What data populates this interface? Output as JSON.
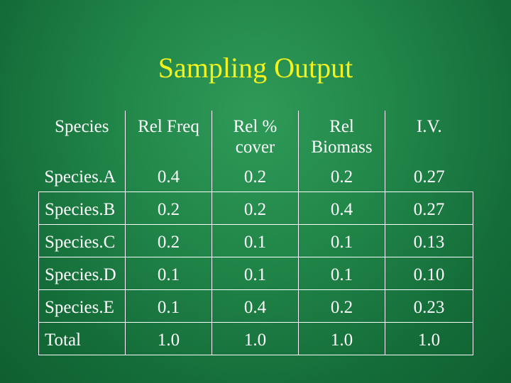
{
  "slide": {
    "title": "Sampling Output"
  },
  "table": {
    "headers": [
      "Species",
      "Rel Freq",
      "Rel % cover",
      "Rel Biomass",
      "I.V."
    ],
    "rows": [
      [
        "Species.A",
        "0.4",
        "0.2",
        "0.2",
        "0.27"
      ],
      [
        "Species.B",
        "0.2",
        "0.2",
        "0.4",
        "0.27"
      ],
      [
        "Species.C",
        "0.2",
        "0.1",
        "0.1",
        "0.13"
      ],
      [
        "Species.D",
        "0.1",
        "0.1",
        "0.1",
        "0.10"
      ],
      [
        "Species.E",
        "0.1",
        "0.4",
        "0.2",
        "0.23"
      ],
      [
        "Total",
        "1.0",
        "1.0",
        "1.0",
        "1.0"
      ]
    ]
  },
  "colors": {
    "background": "#1e8447",
    "title": "#f2f21e",
    "text": "#ffffff",
    "border": "#ffffff"
  }
}
